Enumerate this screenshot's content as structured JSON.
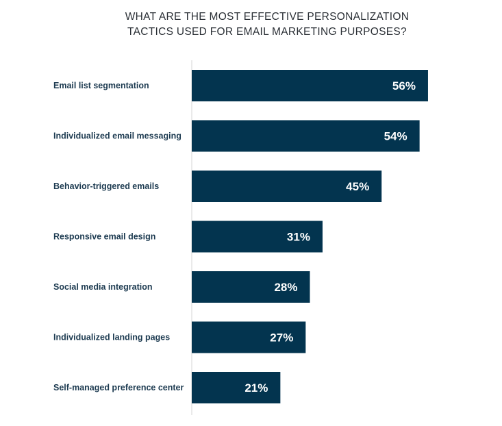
{
  "chart_data": {
    "type": "bar",
    "orientation": "horizontal",
    "title": "WHAT ARE THE MOST EFFECTIVE PERSONALIZATION TACTICS USED FOR EMAIL MARKETING PURPOSES?",
    "title_lines": [
      "WHAT ARE THE MOST EFFECTIVE PERSONALIZATION",
      "TACTICS USED FOR EMAIL MARKETING PURPOSES?"
    ],
    "categories": [
      "Email list segmentation",
      "Individualized email messaging",
      "Behavior-triggered emails",
      "Responsive email design",
      "Social media integration",
      "Individualized landing pages",
      "Self-managed preference center"
    ],
    "values": [
      56,
      54,
      45,
      31,
      28,
      27,
      21
    ],
    "data_labels": [
      "56%",
      "54%",
      "45%",
      "31%",
      "28%",
      "27%",
      "21%"
    ],
    "unit": "%",
    "xlabel": "",
    "ylabel": "",
    "grid": false,
    "bar_color": "#03344f",
    "label_color": "#1c3a50"
  }
}
